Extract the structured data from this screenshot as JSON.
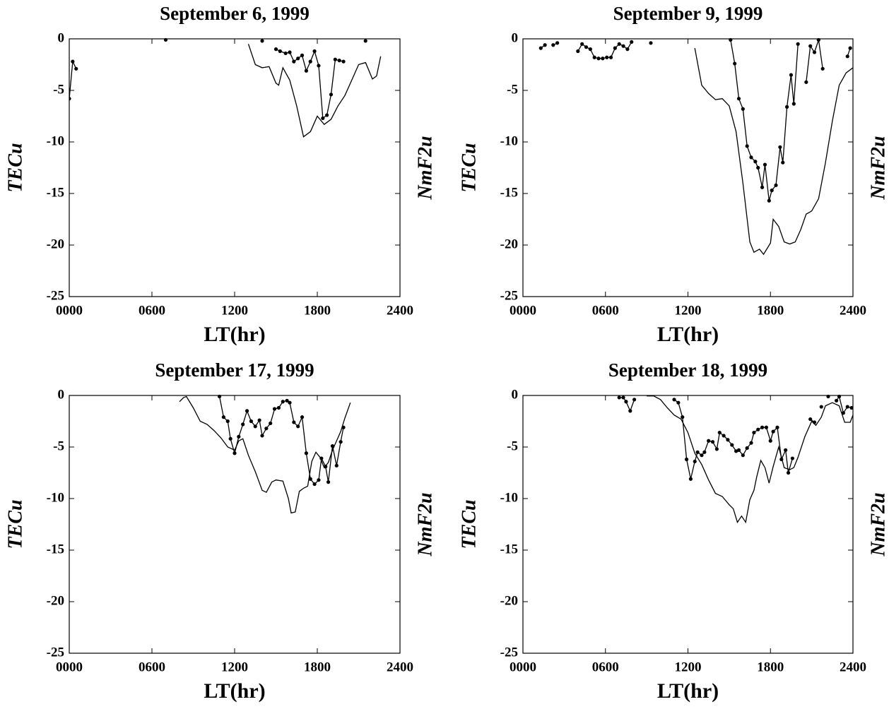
{
  "chart_data": [
    {
      "type": "line",
      "title": "September 6, 1999",
      "xlabel": "LT(hr)",
      "ylabel": "TECu",
      "y2label": "NmF2u",
      "xlim": [
        0,
        24
      ],
      "xticks": [
        {
          "value": 0,
          "label": "0000"
        },
        {
          "value": 6,
          "label": "0600"
        },
        {
          "value": 12,
          "label": "1200"
        },
        {
          "value": 18,
          "label": "1800"
        },
        {
          "value": 24,
          "label": "2400"
        }
      ],
      "ylim": [
        -25,
        0
      ],
      "yticks": [
        0,
        -5,
        -10,
        -15,
        -20,
        -25
      ],
      "grid": false,
      "series": [
        {
          "color": "#000000",
          "marker": false,
          "x": [
            13,
            13.5,
            14,
            14.5,
            15,
            15.2,
            15.5,
            16,
            16.5,
            17,
            17.5,
            18,
            18.5,
            19,
            19.5,
            20,
            20.5,
            21,
            21.5,
            22,
            22.3,
            22.6
          ],
          "values": [
            -0.5,
            -2.5,
            -2.8,
            -2.7,
            -4.3,
            -4.5,
            -2.8,
            -4.0,
            -6.5,
            -9.5,
            -9.0,
            -7.5,
            -8.3,
            -7.8,
            -6.5,
            -5.5,
            -4.0,
            -2.5,
            -2.3,
            -3.9,
            -3.6,
            -1.7
          ]
        },
        {
          "color": "#000000",
          "marker": true,
          "x": [
            0.0,
            0.25,
            0.5,
            null,
            7.0,
            null,
            14.0,
            null,
            15.0,
            15.3,
            15.7,
            16.0,
            16.3,
            16.6,
            16.9,
            17.2,
            17.5,
            17.8,
            18.1,
            18.4,
            18.7,
            19.0,
            19.3,
            19.6,
            19.9,
            null,
            21.5
          ],
          "values": [
            -5.8,
            -2.2,
            -2.9,
            null,
            -0.1,
            null,
            -0.2,
            null,
            -1.0,
            -1.2,
            -1.4,
            -1.3,
            -2.2,
            -1.9,
            -1.6,
            -3.1,
            -2.2,
            -1.2,
            -2.6,
            -7.7,
            -7.4,
            -5.4,
            -2.0,
            -2.1,
            -2.2,
            null,
            -0.2
          ]
        }
      ]
    },
    {
      "type": "line",
      "title": "September 9, 1999",
      "xlabel": "LT(hr)",
      "ylabel": "TECu",
      "y2label": "NmF2u",
      "xlim": [
        0,
        24
      ],
      "xticks": [
        {
          "value": 0,
          "label": "0000"
        },
        {
          "value": 6,
          "label": "0600"
        },
        {
          "value": 12,
          "label": "1200"
        },
        {
          "value": 18,
          "label": "1800"
        },
        {
          "value": 24,
          "label": "2400"
        }
      ],
      "ylim": [
        -25,
        0
      ],
      "yticks": [
        0,
        -5,
        -10,
        -15,
        -20,
        -25
      ],
      "grid": false,
      "series": [
        {
          "color": "#000000",
          "marker": false,
          "x": [
            12.5,
            13,
            13.5,
            14,
            14.5,
            15,
            15.5,
            16,
            16.5,
            16.8,
            17.2,
            17.5,
            18,
            18.2,
            18.6,
            19,
            19.4,
            19.8,
            20.2,
            20.6,
            21,
            21.5,
            22,
            22.5,
            23,
            23.5,
            24
          ],
          "values": [
            -0.9,
            -4.5,
            -5.3,
            -5.9,
            -5.8,
            -6.5,
            -9,
            -14,
            -19.7,
            -20.7,
            -20.4,
            -20.9,
            -19.8,
            -17.5,
            -18.2,
            -19.7,
            -19.9,
            -19.7,
            -18.5,
            -17.0,
            -16.7,
            -15.5,
            -12,
            -8,
            -4.5,
            -3.3,
            -2.8
          ]
        },
        {
          "color": "#000000",
          "marker": true,
          "x": [
            1.3,
            1.6,
            null,
            2.2,
            2.5,
            null,
            4.0,
            4.3,
            4.6,
            4.9,
            5.2,
            5.5,
            5.8,
            6.1,
            6.4,
            6.7,
            7.0,
            7.3,
            7.6,
            7.9,
            null,
            9.3,
            null,
            15.1,
            15.4,
            15.7,
            16.0,
            16.3,
            16.6,
            16.9,
            17.1,
            17.4,
            17.6,
            17.9,
            18.1,
            18.4,
            18.7,
            18.9,
            19.2,
            19.5,
            19.7,
            20.0,
            null,
            20.6,
            20.9,
            21.2,
            21.5,
            21.8,
            null,
            23.6,
            23.8
          ],
          "values": [
            -0.9,
            -0.6,
            null,
            -0.6,
            -0.4,
            null,
            -1.2,
            -0.5,
            -0.8,
            -1.0,
            -1.8,
            -1.9,
            -1.9,
            -1.8,
            -1.8,
            -0.9,
            -0.5,
            -0.7,
            -1.0,
            -0.3,
            null,
            -0.4,
            null,
            -0.1,
            -2.4,
            -5.8,
            -6.8,
            -10.4,
            -11.5,
            -11.9,
            -12.5,
            -14.4,
            -12.2,
            -15.7,
            -14.7,
            -14.2,
            -10.5,
            -12.0,
            -6.6,
            -3.5,
            -6.3,
            -0.5,
            null,
            -4.2,
            -0.7,
            -1.3,
            -0.1,
            -2.9,
            null,
            -1.7,
            -0.9
          ]
        }
      ]
    },
    {
      "type": "line",
      "title": "September 17, 1999",
      "xlabel": "LT(hr)",
      "ylabel": "TECu",
      "y2label": "NmF2u",
      "xlim": [
        0,
        24
      ],
      "xticks": [
        {
          "value": 0,
          "label": "0000"
        },
        {
          "value": 6,
          "label": "0600"
        },
        {
          "value": 12,
          "label": "1200"
        },
        {
          "value": 18,
          "label": "1800"
        },
        {
          "value": 24,
          "label": "2400"
        }
      ],
      "ylim": [
        -25,
        0
      ],
      "yticks": [
        0,
        -5,
        -10,
        -15,
        -20,
        -25
      ],
      "grid": false,
      "series": [
        {
          "color": "#000000",
          "marker": false,
          "x": [
            8,
            8.3,
            8.5,
            9,
            9.5,
            10,
            10.5,
            11,
            11.5,
            12,
            12.3,
            12.6,
            13,
            13.5,
            14,
            14.3,
            14.7,
            15,
            15.5,
            15.9,
            16.1,
            16.4,
            16.7,
            17,
            17.3,
            17.6,
            17.9,
            18.2,
            18.5,
            18.8,
            19.1,
            19.4,
            19.7,
            20,
            20.4
          ],
          "values": [
            -0.6,
            -0.2,
            -0.1,
            -1.2,
            -2.5,
            -2.8,
            -3.4,
            -4.1,
            -5.0,
            -5.3,
            -4.4,
            -4.2,
            -5.8,
            -7.4,
            -9.2,
            -9.4,
            -8.4,
            -8.2,
            -8.3,
            -10.0,
            -11.4,
            -11.3,
            -9.3,
            -9.0,
            -8.8,
            -6.4,
            -5.5,
            -6.0,
            -7.0,
            -6.5,
            -5.3,
            -4.4,
            -3.5,
            -2.2,
            -0.7
          ]
        },
        {
          "color": "#000000",
          "marker": true,
          "x": [
            10.9,
            11.2,
            11.5,
            11.7,
            12.0,
            12.3,
            12.6,
            12.9,
            13.2,
            13.5,
            13.8,
            14.0,
            14.3,
            14.6,
            14.9,
            15.2,
            15.5,
            15.8,
            16.0,
            16.3,
            16.6,
            16.9,
            17.2,
            17.5,
            17.8,
            18.1,
            18.3,
            18.6,
            18.8,
            19.1,
            19.4,
            19.7,
            19.9
          ],
          "values": [
            -0.1,
            -2.1,
            -2.5,
            -4.2,
            -5.6,
            -4.0,
            -2.8,
            -1.5,
            -2.5,
            -3.0,
            -2.4,
            -3.9,
            -3.2,
            -2.7,
            -1.3,
            -1.2,
            -0.6,
            -0.5,
            -0.7,
            -2.6,
            -3.0,
            -2.1,
            -5.6,
            -8.1,
            -8.6,
            -8.2,
            -6.1,
            -6.9,
            -8.4,
            -4.9,
            -6.8,
            -4.5,
            -3.1
          ]
        }
      ]
    },
    {
      "type": "line",
      "title": "September 18, 1999",
      "xlabel": "LT(hr)",
      "ylabel": "TECu",
      "y2label": "NmF2u",
      "xlim": [
        0,
        24
      ],
      "xticks": [
        {
          "value": 0,
          "label": "0000"
        },
        {
          "value": 6,
          "label": "0600"
        },
        {
          "value": 12,
          "label": "1200"
        },
        {
          "value": 18,
          "label": "1800"
        },
        {
          "value": 24,
          "label": "2400"
        }
      ],
      "ylim": [
        -25,
        0
      ],
      "yticks": [
        0,
        -5,
        -10,
        -15,
        -20,
        -25
      ],
      "grid": false,
      "series": [
        {
          "color": "#000000",
          "marker": false,
          "x": [
            9,
            9.5,
            10,
            10.5,
            11,
            11.5,
            12,
            12.5,
            13,
            13.5,
            14,
            14.5,
            15,
            15.3,
            15.6,
            15.9,
            16.2,
            16.5,
            16.8,
            17,
            17.3,
            17.6,
            17.9,
            18.2,
            18.6,
            19,
            19.4,
            19.7,
            20,
            20.5,
            21,
            21.3,
            21.7,
            22,
            22.5,
            23,
            23.4,
            23.8,
            24
          ],
          "values": [
            -0.05,
            -0.05,
            -0.4,
            -1.2,
            -1.9,
            -2.3,
            -3.6,
            -5.6,
            -6.7,
            -8.2,
            -9.5,
            -9.8,
            -10.6,
            -11.0,
            -12.3,
            -11.7,
            -12.3,
            -10.1,
            -9.2,
            -7.9,
            -6.3,
            -7.0,
            -8.5,
            -6.9,
            -5.0,
            -7.0,
            -7.2,
            -7.0,
            -6.0,
            -4.0,
            -2.5,
            -2.9,
            -2.1,
            -1.0,
            -0.7,
            -1.0,
            -2.6,
            -2.6,
            -1.9
          ]
        },
        {
          "color": "#000000",
          "marker": true,
          "x": [
            7.0,
            7.3,
            7.5,
            7.8,
            8.1,
            null,
            11.0,
            11.3,
            11.6,
            11.9,
            12.2,
            12.5,
            12.7,
            13.0,
            13.2,
            13.5,
            13.8,
            14.1,
            14.3,
            14.6,
            14.9,
            15.2,
            15.5,
            15.7,
            16.0,
            16.3,
            16.6,
            16.8,
            17.1,
            17.4,
            17.7,
            18.0,
            18.2,
            18.5,
            18.8,
            19.1,
            19.3,
            19.6,
            null,
            20.9,
            21.2,
            null,
            21.7,
            null,
            22.2,
            null,
            22.8,
            23.0,
            23.3,
            23.6,
            23.9
          ],
          "values": [
            -0.2,
            -0.2,
            -0.6,
            -1.5,
            -0.4,
            null,
            -0.4,
            -0.7,
            -2.1,
            -6.2,
            -8.1,
            -6.4,
            -5.5,
            -5.8,
            -5.5,
            -4.4,
            -4.5,
            -5.2,
            -3.6,
            -3.9,
            -4.3,
            -4.8,
            -5.4,
            -5.3,
            -5.8,
            -5.1,
            -4.6,
            -3.6,
            -3.3,
            -3.1,
            -3.1,
            -4.4,
            -3.5,
            -3.1,
            -6.2,
            -5.3,
            -7.5,
            -6.1,
            null,
            -2.3,
            -2.6,
            null,
            -1.1,
            null,
            -0.1,
            null,
            -0.5,
            -0.1,
            -1.7,
            -1.1,
            -1.2
          ]
        }
      ]
    }
  ]
}
